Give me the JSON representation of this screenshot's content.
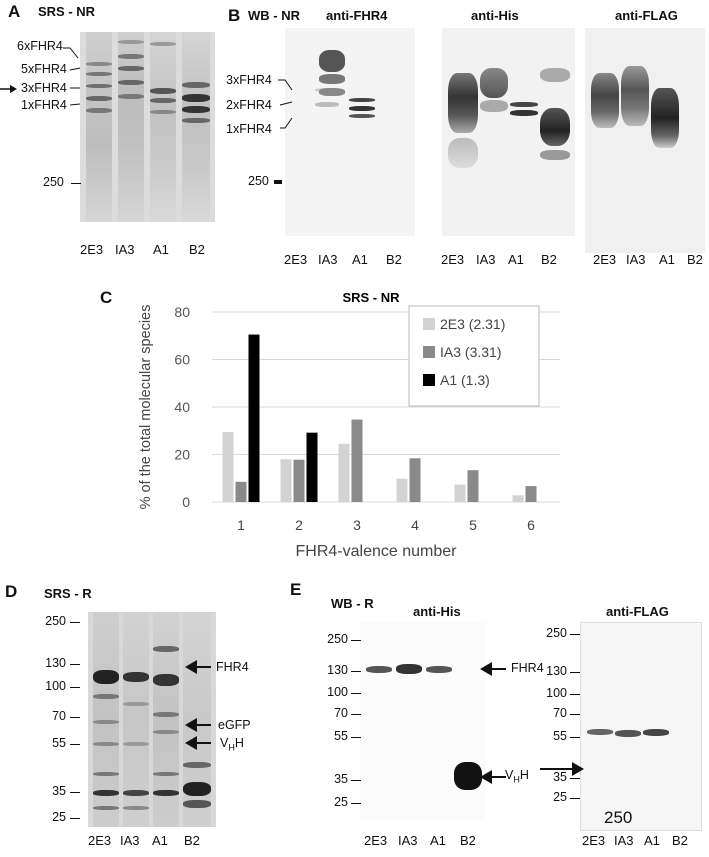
{
  "panels": {
    "A": {
      "letter": "A",
      "title": "SRS - NR",
      "labels": [
        "6xFHR4",
        "5xFHR4",
        "3xFHR4",
        "1xFHR4"
      ],
      "marker": "250",
      "lanes": [
        "2E3",
        "IA3",
        "A1",
        "B2"
      ]
    },
    "B": {
      "letter": "B",
      "title": "WB - NR",
      "blots": [
        {
          "title": "anti-FHR4",
          "lanes": [
            "2E3",
            "IA3",
            "A1",
            "B2"
          ]
        },
        {
          "title": "anti-His",
          "lanes": [
            "2E3",
            "IA3",
            "A1",
            "B2"
          ]
        },
        {
          "title": "anti-FLAG",
          "lanes": [
            "2E3",
            "IA3",
            "A1",
            "B2"
          ]
        }
      ],
      "labels": [
        "3xFHR4",
        "2xFHR4",
        "1xFHR4"
      ],
      "marker": "250"
    },
    "C": {
      "letter": "C"
    },
    "D": {
      "letter": "D",
      "title": "SRS - R",
      "markers": [
        "250",
        "130",
        "100",
        "70",
        "55",
        "35",
        "25"
      ],
      "lanes": [
        "2E3",
        "IA3",
        "A1",
        "B2"
      ],
      "arrows": {
        "fhr4": "FHR4",
        "egfp": "eGFP",
        "vhh_main": "V",
        "vhh_sub": "H",
        "vhh_tail": "H"
      }
    },
    "E": {
      "letter": "E",
      "title": "WB - R",
      "his_title": "anti-His",
      "flag_title": "anti-FLAG",
      "markers": [
        "250",
        "130",
        "100",
        "70",
        "55",
        "35",
        "25"
      ],
      "lanes": [
        "2E3",
        "IA3",
        "A1",
        "B2"
      ],
      "arrows": {
        "fhr4": "FHR4",
        "vhh_main": "V",
        "vhh_sub": "H",
        "vhh_tail": "H"
      },
      "flag_inner": "250"
    }
  },
  "chart_data": {
    "type": "bar",
    "title": "SRS - NR",
    "xlabel": "FHR4-valence number",
    "ylabel": "% of the total molecular species",
    "categories": [
      "1",
      "2",
      "3",
      "4",
      "5",
      "6"
    ],
    "ylim": [
      0,
      80
    ],
    "yticks": [
      0,
      20,
      40,
      60,
      80
    ],
    "legend_position": "top-right",
    "series": [
      {
        "name": "2E3 (2.31)",
        "color": "#d3d3d3",
        "values": [
          29.5,
          18,
          24.5,
          9.8,
          7.3,
          2.8
        ]
      },
      {
        "name": "IA3 (3.31)",
        "color": "#8a8a8a",
        "values": [
          8.5,
          17.8,
          34.7,
          18.4,
          13.4,
          6.7
        ]
      },
      {
        "name": "A1 (1.3)",
        "color": "#000000",
        "values": [
          70.5,
          29.2,
          null,
          null,
          null,
          null
        ]
      }
    ]
  }
}
